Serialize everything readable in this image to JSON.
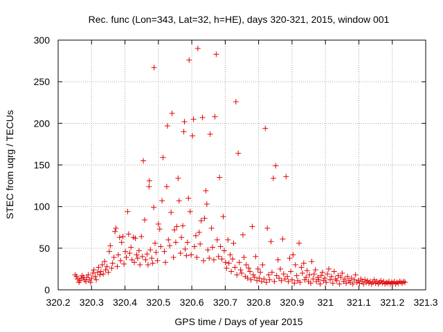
{
  "chart_data": {
    "type": "scatter",
    "title": "Rec. func (Lon=343, Lat=32, h=HE), days 320-321, 2015, window 001",
    "xlabel": "GPS time / Days of year 2015",
    "ylabel": "STEC from uqrg / TECUs",
    "xlim": [
      320.2,
      321.3
    ],
    "ylim": [
      0,
      300
    ],
    "xticks": [
      "320.2",
      "320.3",
      "320.4",
      "320.5",
      "320.6",
      "320.7",
      "320.8",
      "320.9",
      "321",
      "321.1",
      "321.2",
      "321.3"
    ],
    "yticks": [
      "0",
      "50",
      "100",
      "150",
      "200",
      "250",
      "300"
    ],
    "grid": true,
    "legend": "none",
    "marker": "+",
    "color": "#e00000",
    "points": [
      [
        320.251,
        18
      ],
      [
        320.255,
        16
      ],
      [
        320.258,
        13
      ],
      [
        320.262,
        9
      ],
      [
        320.265,
        11
      ],
      [
        320.269,
        14
      ],
      [
        320.272,
        17
      ],
      [
        320.276,
        15
      ],
      [
        320.279,
        12
      ],
      [
        320.283,
        10
      ],
      [
        320.286,
        15
      ],
      [
        320.29,
        18
      ],
      [
        320.293,
        12
      ],
      [
        320.297,
        9
      ],
      [
        320.3,
        14
      ],
      [
        320.304,
        20
      ],
      [
        320.307,
        24
      ],
      [
        320.311,
        16
      ],
      [
        320.314,
        12
      ],
      [
        320.318,
        21
      ],
      [
        320.321,
        27
      ],
      [
        320.325,
        18
      ],
      [
        320.328,
        22
      ],
      [
        320.332,
        30
      ],
      [
        320.335,
        19
      ],
      [
        320.339,
        34
      ],
      [
        320.342,
        24
      ],
      [
        320.346,
        28
      ],
      [
        320.35,
        21
      ],
      [
        320.353,
        46
      ],
      [
        320.356,
        53
      ],
      [
        320.36,
        26
      ],
      [
        320.363,
        32
      ],
      [
        320.367,
        39
      ],
      [
        320.37,
        70
      ],
      [
        320.373,
        74
      ],
      [
        320.377,
        28
      ],
      [
        320.38,
        42
      ],
      [
        320.384,
        63
      ],
      [
        320.387,
        35
      ],
      [
        320.39,
        57
      ],
      [
        320.394,
        64
      ],
      [
        320.397,
        31
      ],
      [
        320.401,
        46
      ],
      [
        320.404,
        39
      ],
      [
        320.408,
        94
      ],
      [
        320.411,
        67
      ],
      [
        320.414,
        44
      ],
      [
        320.418,
        51
      ],
      [
        320.421,
        36
      ],
      [
        320.425,
        63
      ],
      [
        320.428,
        33
      ],
      [
        320.431,
        62
      ],
      [
        320.435,
        42
      ],
      [
        320.438,
        38
      ],
      [
        320.442,
        47
      ],
      [
        320.445,
        30
      ],
      [
        320.449,
        64
      ],
      [
        320.452,
        40
      ],
      [
        320.455,
        155
      ],
      [
        320.459,
        84
      ],
      [
        320.462,
        36
      ],
      [
        320.466,
        43
      ],
      [
        320.469,
        30
      ],
      [
        320.472,
        124
      ],
      [
        320.473,
        131
      ],
      [
        320.476,
        48
      ],
      [
        320.48,
        38
      ],
      [
        320.483,
        32
      ],
      [
        320.486,
        99
      ],
      [
        320.487,
        267
      ],
      [
        320.49,
        56
      ],
      [
        320.493,
        45
      ],
      [
        320.497,
        35
      ],
      [
        320.5,
        79
      ],
      [
        320.504,
        73
      ],
      [
        320.507,
        52
      ],
      [
        320.511,
        107
      ],
      [
        320.514,
        159
      ],
      [
        320.518,
        46
      ],
      [
        320.521,
        33
      ],
      [
        320.525,
        124
      ],
      [
        320.527,
        197
      ],
      [
        320.53,
        60
      ],
      [
        320.534,
        53
      ],
      [
        320.538,
        93
      ],
      [
        320.541,
        212
      ],
      [
        320.545,
        39
      ],
      [
        320.548,
        72
      ],
      [
        320.552,
        57
      ],
      [
        320.555,
        76
      ],
      [
        320.559,
        134
      ],
      [
        320.562,
        107
      ],
      [
        320.566,
        44
      ],
      [
        320.569,
        63
      ],
      [
        320.573,
        77
      ],
      [
        320.576,
        190
      ],
      [
        320.578,
        202
      ],
      [
        320.58,
        49
      ],
      [
        320.584,
        41
      ],
      [
        320.587,
        57
      ],
      [
        320.59,
        110
      ],
      [
        320.592,
        276
      ],
      [
        320.595,
        94
      ],
      [
        320.598,
        42
      ],
      [
        320.602,
        185
      ],
      [
        320.605,
        205
      ],
      [
        320.608,
        52
      ],
      [
        320.612,
        65
      ],
      [
        320.615,
        39
      ],
      [
        320.618,
        290
      ],
      [
        320.622,
        69
      ],
      [
        320.625,
        55
      ],
      [
        320.628,
        83
      ],
      [
        320.632,
        207
      ],
      [
        320.635,
        35
      ],
      [
        320.638,
        86
      ],
      [
        320.642,
        119
      ],
      [
        320.645,
        103
      ],
      [
        320.648,
        48
      ],
      [
        320.652,
        38
      ],
      [
        320.655,
        187
      ],
      [
        320.659,
        74
      ],
      [
        320.662,
        51
      ],
      [
        320.666,
        36
      ],
      [
        320.669,
        208
      ],
      [
        320.673,
        283
      ],
      [
        320.676,
        60
      ],
      [
        320.68,
        40
      ],
      [
        320.683,
        135
      ],
      [
        320.686,
        52
      ],
      [
        320.69,
        37
      ],
      [
        320.694,
        88
      ],
      [
        320.697,
        47
      ],
      [
        320.701,
        33
      ],
      [
        320.704,
        26
      ],
      [
        320.708,
        60
      ],
      [
        320.711,
        32
      ],
      [
        320.715,
        42
      ],
      [
        320.718,
        22
      ],
      [
        320.722,
        37
      ],
      [
        320.725,
        56
      ],
      [
        320.729,
        27
      ],
      [
        320.732,
        226
      ],
      [
        320.735,
        18
      ],
      [
        320.739,
        164
      ],
      [
        320.742,
        33
      ],
      [
        320.746,
        24
      ],
      [
        320.749,
        20
      ],
      [
        320.753,
        66
      ],
      [
        320.756,
        39
      ],
      [
        320.76,
        16
      ],
      [
        320.763,
        30
      ],
      [
        320.767,
        14
      ],
      [
        320.77,
        26
      ],
      [
        320.774,
        22
      ],
      [
        320.777,
        12
      ],
      [
        320.781,
        76
      ],
      [
        320.784,
        18
      ],
      [
        320.788,
        15
      ],
      [
        320.791,
        40
      ],
      [
        320.795,
        11
      ],
      [
        320.798,
        25
      ],
      [
        320.802,
        14
      ],
      [
        320.805,
        21
      ],
      [
        320.809,
        10
      ],
      [
        320.812,
        30
      ],
      [
        320.816,
        13
      ],
      [
        320.82,
        194
      ],
      [
        320.823,
        9
      ],
      [
        320.826,
        74
      ],
      [
        320.83,
        18
      ],
      [
        320.833,
        12
      ],
      [
        320.837,
        58
      ],
      [
        320.84,
        21
      ],
      [
        320.844,
        134
      ],
      [
        320.847,
        10
      ],
      [
        320.851,
        149
      ],
      [
        320.854,
        17
      ],
      [
        320.858,
        36
      ],
      [
        320.861,
        14
      ],
      [
        320.865,
        25
      ],
      [
        320.868,
        11
      ],
      [
        320.872,
        61
      ],
      [
        320.875,
        19
      ],
      [
        320.879,
        13
      ],
      [
        320.882,
        136
      ],
      [
        320.886,
        16
      ],
      [
        320.889,
        10
      ],
      [
        320.893,
        38
      ],
      [
        320.896,
        22
      ],
      [
        320.9,
        12
      ],
      [
        320.903,
        42
      ],
      [
        320.907,
        8
      ],
      [
        320.91,
        30
      ],
      [
        320.914,
        17
      ],
      [
        320.917,
        11
      ],
      [
        320.921,
        56
      ],
      [
        320.924,
        9
      ],
      [
        320.928,
        27
      ],
      [
        320.931,
        20
      ],
      [
        320.935,
        32
      ],
      [
        320.938,
        12
      ],
      [
        320.942,
        15
      ],
      [
        320.945,
        23
      ],
      [
        320.949,
        10
      ],
      [
        320.952,
        18
      ],
      [
        320.956,
        8
      ],
      [
        320.959,
        34
      ],
      [
        320.963,
        13
      ],
      [
        320.966,
        19
      ],
      [
        320.97,
        24
      ],
      [
        320.973,
        10
      ],
      [
        320.977,
        15
      ],
      [
        320.98,
        12
      ],
      [
        320.984,
        7
      ],
      [
        320.987,
        17
      ],
      [
        320.991,
        21
      ],
      [
        320.994,
        11
      ],
      [
        320.998,
        14
      ],
      [
        321.002,
        9
      ],
      [
        321.006,
        19
      ],
      [
        321.01,
        25
      ],
      [
        321.014,
        12
      ],
      [
        321.018,
        16
      ],
      [
        321.022,
        8
      ],
      [
        321.026,
        22
      ],
      [
        321.03,
        13
      ],
      [
        321.034,
        11
      ],
      [
        321.038,
        17
      ],
      [
        321.042,
        7
      ],
      [
        321.046,
        15
      ],
      [
        321.05,
        20
      ],
      [
        321.054,
        10
      ],
      [
        321.058,
        13
      ],
      [
        321.062,
        8
      ],
      [
        321.066,
        16
      ],
      [
        321.07,
        11
      ],
      [
        321.074,
        9
      ],
      [
        321.078,
        14
      ],
      [
        321.082,
        7
      ],
      [
        321.086,
        12
      ],
      [
        321.09,
        18
      ],
      [
        321.094,
        9
      ],
      [
        321.098,
        11
      ],
      [
        321.102,
        8
      ],
      [
        321.106,
        13
      ],
      [
        321.11,
        10
      ],
      [
        321.114,
        7
      ],
      [
        321.118,
        12
      ],
      [
        321.122,
        9
      ],
      [
        321.126,
        11
      ],
      [
        321.13,
        8
      ],
      [
        321.134,
        10
      ],
      [
        321.138,
        7
      ],
      [
        321.142,
        9
      ],
      [
        321.146,
        12
      ],
      [
        321.15,
        8
      ],
      [
        321.154,
        10
      ],
      [
        321.158,
        7
      ],
      [
        321.162,
        9
      ],
      [
        321.166,
        11
      ],
      [
        321.17,
        8
      ],
      [
        321.174,
        10
      ],
      [
        321.178,
        7
      ],
      [
        321.182,
        9
      ],
      [
        321.186,
        8
      ],
      [
        321.19,
        10
      ],
      [
        321.194,
        7
      ],
      [
        321.198,
        9
      ],
      [
        321.202,
        8
      ],
      [
        321.206,
        10
      ],
      [
        321.21,
        7
      ],
      [
        321.214,
        9
      ],
      [
        321.218,
        8
      ],
      [
        321.222,
        10
      ],
      [
        321.226,
        9
      ],
      [
        321.23,
        8
      ],
      [
        321.234,
        10
      ],
      [
        321.238,
        9
      ]
    ]
  }
}
